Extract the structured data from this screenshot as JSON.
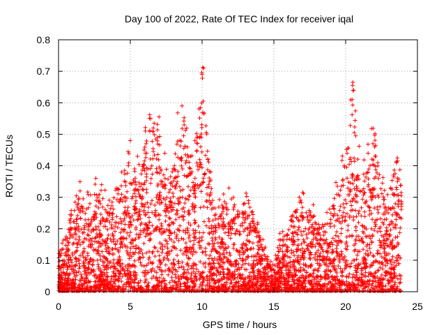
{
  "chart_data": {
    "type": "scatter",
    "title": "Day 100 of 2022, Rate Of TEC Index for receiver iqal",
    "xlabel": "GPS time / hours",
    "ylabel": "ROTI / TECUs",
    "xlim": [
      0,
      25
    ],
    "ylim": [
      0,
      0.8
    ],
    "xticks": [
      "0",
      "5",
      "10",
      "15",
      "20",
      "25"
    ],
    "yticks": [
      "0",
      "0.1",
      "0.2",
      "0.3",
      "0.4",
      "0.5",
      "0.6",
      "0.7",
      "0.8"
    ],
    "grid": true,
    "marker": "+",
    "color": "#ff0000",
    "data_range": [
      0,
      23.9
    ],
    "envelope": [
      [
        0.0,
        0.15
      ],
      [
        0.5,
        0.17
      ],
      [
        1.0,
        0.3
      ],
      [
        1.5,
        0.32
      ],
      [
        2.0,
        0.3
      ],
      [
        2.5,
        0.35
      ],
      [
        3.0,
        0.32
      ],
      [
        3.5,
        0.28
      ],
      [
        4.0,
        0.33
      ],
      [
        4.5,
        0.38
      ],
      [
        5.0,
        0.45
      ],
      [
        5.5,
        0.38
      ],
      [
        6.0,
        0.48
      ],
      [
        6.5,
        0.56
      ],
      [
        7.0,
        0.48
      ],
      [
        7.5,
        0.38
      ],
      [
        8.0,
        0.42
      ],
      [
        8.5,
        0.57
      ],
      [
        9.0,
        0.5
      ],
      [
        9.5,
        0.45
      ],
      [
        10.0,
        0.72
      ],
      [
        10.5,
        0.4
      ],
      [
        11.0,
        0.28
      ],
      [
        11.5,
        0.3
      ],
      [
        12.0,
        0.32
      ],
      [
        12.5,
        0.28
      ],
      [
        13.0,
        0.3
      ],
      [
        13.5,
        0.27
      ],
      [
        14.0,
        0.2
      ],
      [
        14.5,
        0.12
      ],
      [
        15.0,
        0.09
      ],
      [
        15.5,
        0.19
      ],
      [
        16.0,
        0.22
      ],
      [
        16.5,
        0.28
      ],
      [
        17.0,
        0.3
      ],
      [
        17.5,
        0.27
      ],
      [
        18.0,
        0.25
      ],
      [
        18.5,
        0.22
      ],
      [
        19.0,
        0.28
      ],
      [
        19.5,
        0.35
      ],
      [
        20.0,
        0.45
      ],
      [
        20.5,
        0.67
      ],
      [
        21.0,
        0.42
      ],
      [
        21.5,
        0.45
      ],
      [
        22.0,
        0.52
      ],
      [
        22.5,
        0.36
      ],
      [
        23.0,
        0.3
      ],
      [
        23.5,
        0.42
      ],
      [
        23.9,
        0.38
      ]
    ],
    "points": [
      [
        10.05,
        0.712
      ],
      [
        10.1,
        0.71
      ],
      [
        10.0,
        0.69
      ],
      [
        10.02,
        0.678
      ],
      [
        10.08,
        0.605
      ],
      [
        10.12,
        0.565
      ],
      [
        9.95,
        0.49
      ],
      [
        9.9,
        0.46
      ],
      [
        20.5,
        0.665
      ],
      [
        20.48,
        0.655
      ],
      [
        20.55,
        0.64
      ],
      [
        20.45,
        0.61
      ],
      [
        20.6,
        0.505
      ],
      [
        20.7,
        0.495
      ],
      [
        21.8,
        0.518
      ],
      [
        6.35,
        0.562
      ],
      [
        6.42,
        0.55
      ],
      [
        6.6,
        0.52
      ],
      [
        7.0,
        0.555
      ],
      [
        8.6,
        0.59
      ],
      [
        8.3,
        0.568
      ],
      [
        8.75,
        0.53
      ],
      [
        5.0,
        0.48
      ],
      [
        4.85,
        0.445
      ],
      [
        5.5,
        0.43
      ],
      [
        6.1,
        0.47
      ],
      [
        6.9,
        0.49
      ],
      [
        9.2,
        0.43
      ],
      [
        9.5,
        0.48
      ],
      [
        7.4,
        0.44
      ],
      [
        23.6,
        0.425
      ],
      [
        23.55,
        0.41
      ],
      [
        22.1,
        0.43
      ],
      [
        21.9,
        0.47
      ],
      [
        20.1,
        0.44
      ],
      [
        20.3,
        0.42
      ],
      [
        19.9,
        0.4
      ],
      [
        4.6,
        0.385
      ],
      [
        4.4,
        0.38
      ],
      [
        5.3,
        0.39
      ],
      [
        10.4,
        0.42
      ],
      [
        10.6,
        0.38
      ],
      [
        2.6,
        0.36
      ],
      [
        3.0,
        0.34
      ],
      [
        1.5,
        0.32
      ]
    ]
  }
}
